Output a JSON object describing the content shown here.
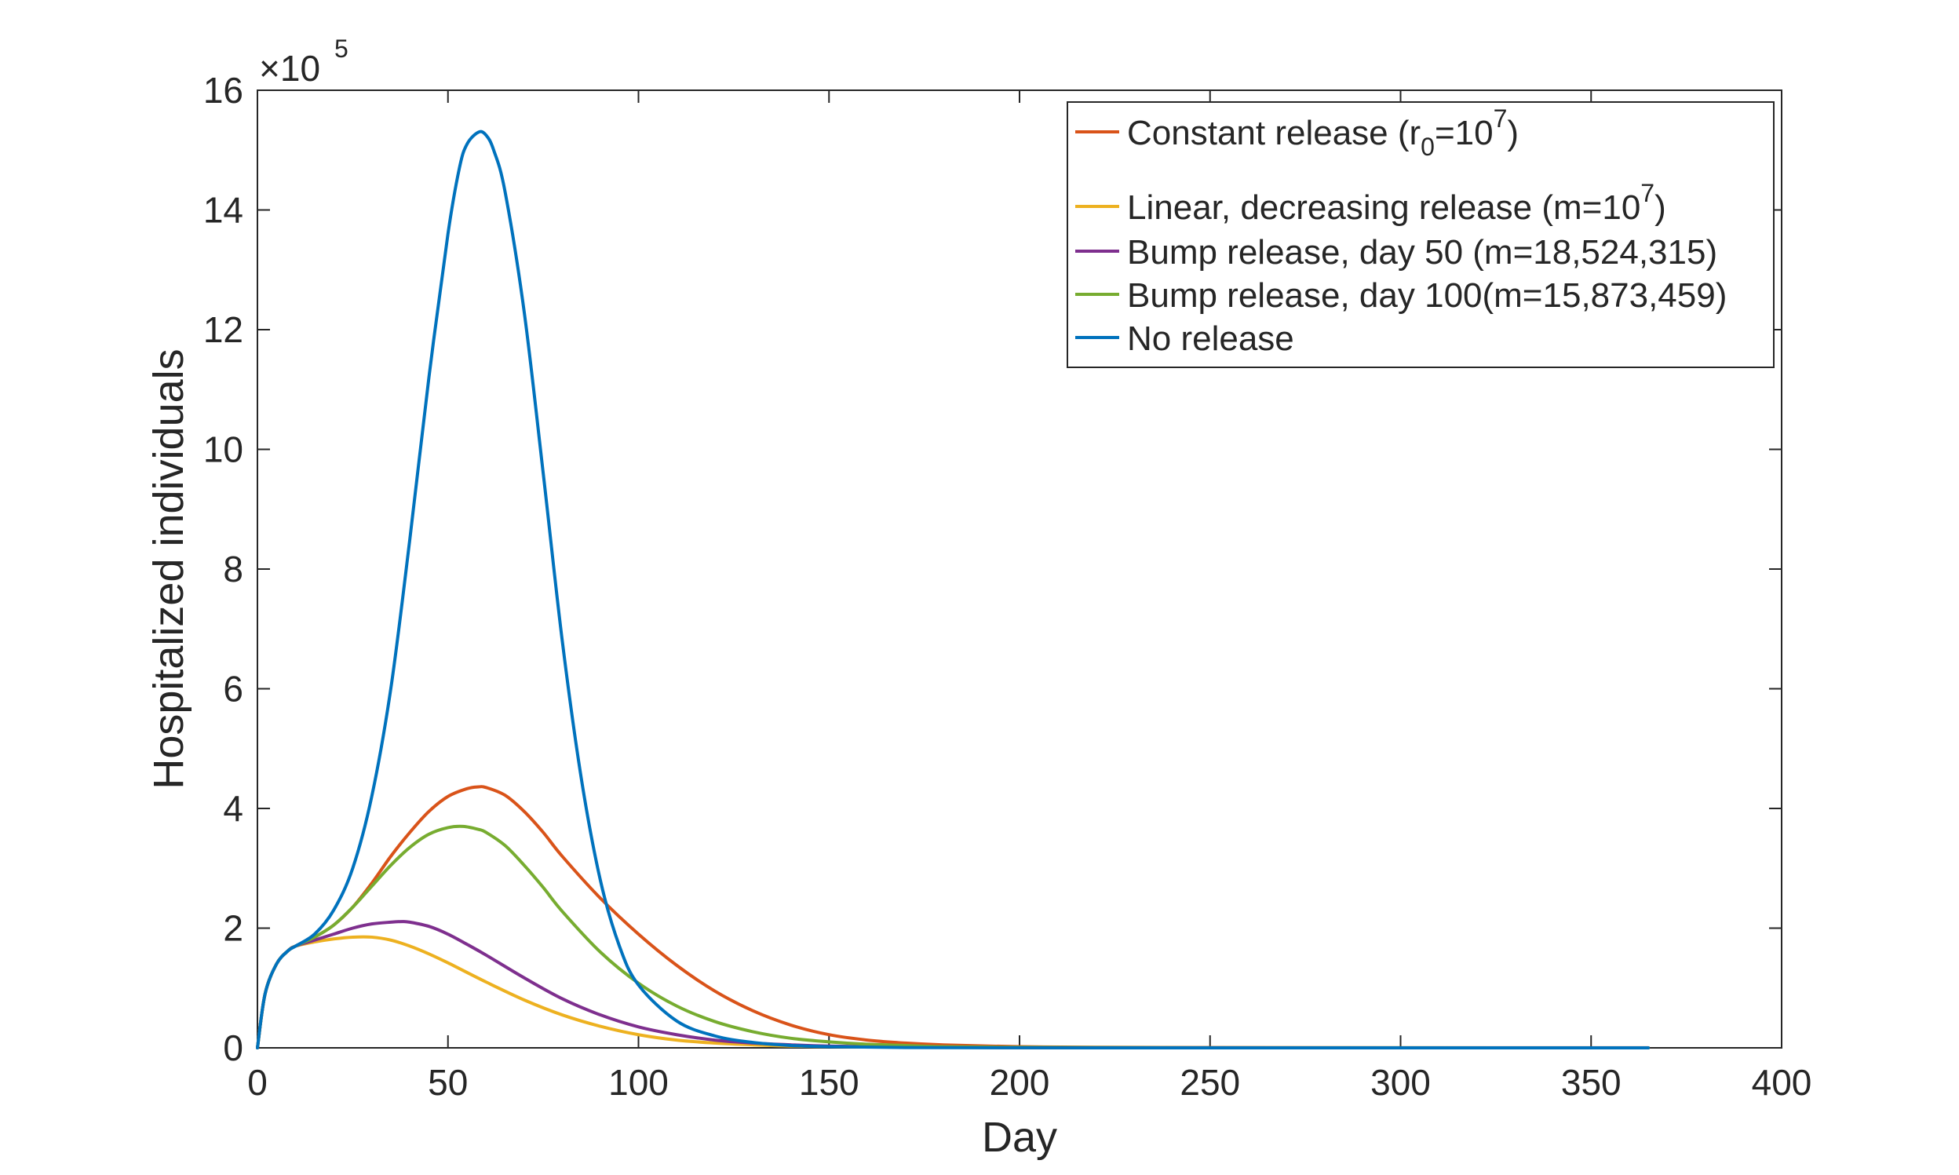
{
  "chart_data": {
    "type": "line",
    "xlabel": "Day",
    "ylabel": "Hospitalized individuals",
    "xlim": [
      0,
      400
    ],
    "ylim": [
      0,
      16
    ],
    "y_multiplier_label": "×10",
    "y_multiplier_exponent": "5",
    "x_ticks": [
      "0",
      "50",
      "100",
      "150",
      "200",
      "250",
      "300",
      "350",
      "400"
    ],
    "y_ticks": [
      "0",
      "2",
      "4",
      "6",
      "8",
      "10",
      "12",
      "14",
      "16"
    ],
    "grid": false,
    "legend_position": "top-right",
    "series": [
      {
        "name": "Constant release (r0=10^7)",
        "legend_parts": [
          "Constant release (r",
          "0",
          "=10",
          "7",
          ")"
        ],
        "color": "#D95319",
        "x": [
          0,
          2,
          5,
          8,
          10,
          15,
          20,
          25,
          30,
          35,
          40,
          45,
          50,
          55,
          58,
          60,
          65,
          70,
          75,
          80,
          90,
          100,
          110,
          120,
          130,
          140,
          150,
          160,
          170,
          180,
          200,
          220,
          250,
          300,
          365
        ],
        "y": [
          0,
          0.9,
          1.4,
          1.62,
          1.7,
          1.85,
          2.05,
          2.35,
          2.75,
          3.2,
          3.6,
          3.95,
          4.2,
          4.33,
          4.36,
          4.35,
          4.22,
          3.95,
          3.6,
          3.2,
          2.5,
          1.9,
          1.38,
          0.95,
          0.62,
          0.38,
          0.22,
          0.13,
          0.08,
          0.05,
          0.02,
          0.01,
          0.005,
          0.002,
          0.001
        ]
      },
      {
        "name": "Linear, decreasing release (m=10^7)",
        "legend_parts": [
          "Linear, decreasing release (m=10",
          "7",
          ")"
        ],
        "color": "#EDB120",
        "x": [
          0,
          2,
          5,
          8,
          10,
          15,
          20,
          25,
          30,
          35,
          40,
          45,
          50,
          60,
          70,
          80,
          90,
          100,
          110,
          120,
          130,
          140,
          150,
          170,
          200,
          250,
          300,
          365
        ],
        "y": [
          0,
          0.9,
          1.4,
          1.62,
          1.7,
          1.77,
          1.82,
          1.85,
          1.85,
          1.8,
          1.7,
          1.57,
          1.42,
          1.1,
          0.8,
          0.55,
          0.36,
          0.22,
          0.13,
          0.08,
          0.05,
          0.03,
          0.02,
          0.01,
          0.003,
          0.001,
          0.0005,
          0.0003
        ]
      },
      {
        "name": "Bump release, day 50 (m=18,524,315)",
        "legend_parts": [
          "Bump release, day 50 (m=18,524,315)"
        ],
        "color": "#7E2F8E",
        "x": [
          0,
          2,
          5,
          8,
          10,
          15,
          20,
          25,
          30,
          35,
          38,
          40,
          45,
          50,
          55,
          60,
          70,
          80,
          90,
          100,
          110,
          120,
          130,
          140,
          150,
          170,
          200,
          250,
          300,
          365
        ],
        "y": [
          0,
          0.9,
          1.4,
          1.62,
          1.7,
          1.8,
          1.9,
          2.0,
          2.07,
          2.1,
          2.11,
          2.1,
          2.03,
          1.9,
          1.73,
          1.55,
          1.17,
          0.82,
          0.55,
          0.35,
          0.22,
          0.13,
          0.08,
          0.05,
          0.03,
          0.01,
          0.003,
          0.001,
          0.0005,
          0.0003
        ]
      },
      {
        "name": "Bump release, day 100(m=15,873,459)",
        "legend_parts": [
          "Bump release, day 100(m=15,873,459)"
        ],
        "color": "#77AC30",
        "x": [
          0,
          2,
          5,
          8,
          10,
          15,
          20,
          25,
          30,
          35,
          40,
          45,
          50,
          54,
          58,
          60,
          65,
          70,
          75,
          80,
          90,
          100,
          110,
          120,
          130,
          140,
          150,
          160,
          170,
          180,
          200,
          220,
          250,
          300,
          365
        ],
        "y": [
          0,
          0.9,
          1.4,
          1.62,
          1.7,
          1.85,
          2.05,
          2.35,
          2.7,
          3.05,
          3.35,
          3.57,
          3.68,
          3.7,
          3.65,
          3.6,
          3.38,
          3.05,
          2.68,
          2.28,
          1.6,
          1.08,
          0.7,
          0.44,
          0.27,
          0.16,
          0.1,
          0.06,
          0.04,
          0.02,
          0.01,
          0.005,
          0.002,
          0.001,
          0.0005
        ]
      },
      {
        "name": "No release",
        "legend_parts": [
          "No release"
        ],
        "color": "#0072BD",
        "x": [
          0,
          2,
          5,
          8,
          10,
          15,
          20,
          25,
          30,
          35,
          40,
          45,
          50,
          53,
          55,
          58,
          60,
          62,
          65,
          70,
          75,
          80,
          85,
          90,
          95,
          100,
          110,
          120,
          130,
          140,
          150,
          170,
          200,
          250,
          300,
          365
        ],
        "y": [
          0,
          0.9,
          1.4,
          1.62,
          1.7,
          1.9,
          2.3,
          3.0,
          4.2,
          6.0,
          8.5,
          11.2,
          13.6,
          14.7,
          15.1,
          15.3,
          15.25,
          15.0,
          14.3,
          12.3,
          9.6,
          6.8,
          4.5,
          2.8,
          1.7,
          1.05,
          0.45,
          0.2,
          0.09,
          0.04,
          0.02,
          0.005,
          0.001,
          0.0003,
          0.0002,
          0.0001
        ]
      }
    ]
  }
}
